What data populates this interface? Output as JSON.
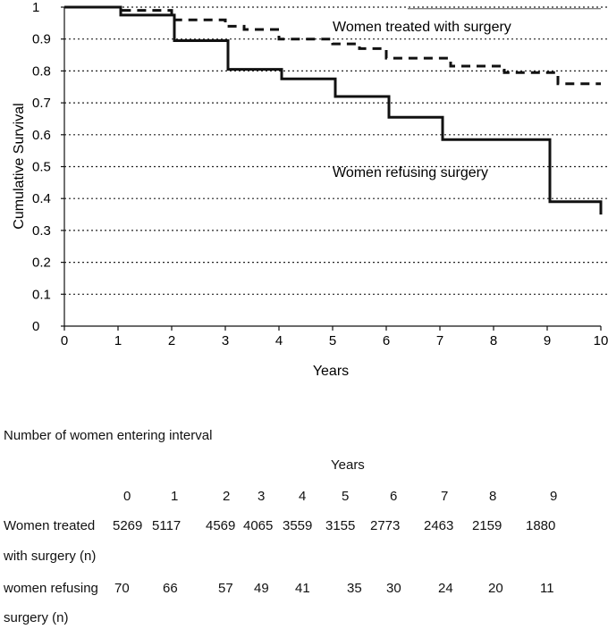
{
  "chart_data": {
    "type": "line",
    "title": "",
    "xlabel": "Years",
    "ylabel": "Cumulative Survival",
    "xlim": [
      0,
      10
    ],
    "ylim": [
      0,
      1
    ],
    "x_ticks": [
      "0",
      "1",
      "2",
      "3",
      "4",
      "5",
      "6",
      "7",
      "8",
      "9",
      "10"
    ],
    "y_ticks": [
      "0",
      "0.1",
      "0.2",
      "0.3",
      "0.4",
      "0.5",
      "0.6",
      "0.7",
      "0.8",
      "0.9",
      "1"
    ],
    "gridlines": "horizontal dotted",
    "series": [
      {
        "name": "Women treated with surgery",
        "style": "dashed",
        "x": [
          0,
          1,
          1,
          2,
          2,
          3,
          3,
          3.35,
          3.35,
          4,
          4,
          5,
          5,
          5.5,
          5.5,
          6,
          6,
          7.2,
          7.2,
          8.2,
          8.2,
          9.2,
          9.2,
          10
        ],
        "y": [
          1.0,
          1.0,
          0.99,
          0.99,
          0.96,
          0.96,
          0.94,
          0.94,
          0.93,
          0.93,
          0.9,
          0.9,
          0.885,
          0.885,
          0.87,
          0.87,
          0.84,
          0.84,
          0.815,
          0.815,
          0.795,
          0.795,
          0.76,
          0.76
        ]
      },
      {
        "name": "Women refusing surgery",
        "style": "solid",
        "x": [
          0,
          1.05,
          1.05,
          2.05,
          2.05,
          3.05,
          3.05,
          4.05,
          4.05,
          5.05,
          5.05,
          6.05,
          6.05,
          7.05,
          7.05,
          9.05,
          9.05,
          10,
          10
        ],
        "y": [
          1.0,
          1.0,
          0.975,
          0.975,
          0.895,
          0.895,
          0.805,
          0.805,
          0.775,
          0.775,
          0.72,
          0.72,
          0.655,
          0.655,
          0.585,
          0.585,
          0.39,
          0.39,
          0.35
        ]
      }
    ],
    "annotations": [
      "Women treated with surgery",
      "Women refusing surgery"
    ]
  },
  "table": {
    "caption": "Number of women entering interval",
    "header": "Years",
    "columns": [
      "0",
      "1",
      "2",
      "3",
      "4",
      "5",
      "6",
      "7",
      "8",
      "9"
    ],
    "rows": [
      {
        "label_line1": "Women treated",
        "label_line2": "with surgery (n)",
        "values": [
          "5269",
          "5117",
          "4569",
          "4065",
          "3559",
          "3155",
          "2773",
          "2463",
          "2159",
          "1880"
        ]
      },
      {
        "label_line1": "women refusing",
        "label_line2": "surgery (n)",
        "values": [
          "70",
          "66",
          "57",
          "49",
          "41",
          "35",
          "30",
          "24",
          "20",
          "11"
        ]
      }
    ]
  }
}
